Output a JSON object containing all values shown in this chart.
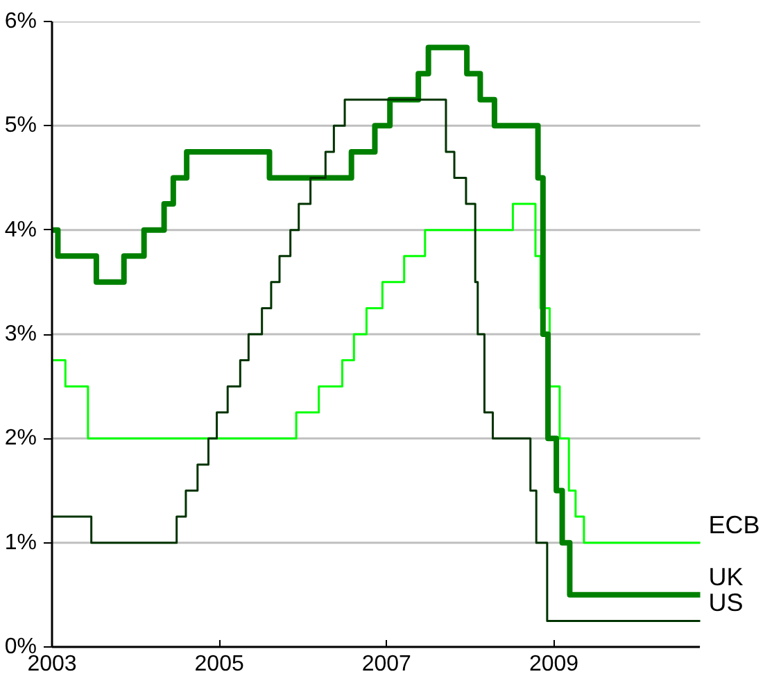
{
  "chart_data": {
    "type": "step",
    "xlim": [
      2003,
      2010.75
    ],
    "ylim": [
      0,
      6
    ],
    "xticks": [
      2003,
      2005,
      2007,
      2009
    ],
    "yticks": [
      {
        "value": 0,
        "label": "0%"
      },
      {
        "value": 1,
        "label": "1%"
      },
      {
        "value": 2,
        "label": "2%"
      },
      {
        "value": 3,
        "label": "3%"
      },
      {
        "value": 4,
        "label": "4%"
      },
      {
        "value": 5,
        "label": "5%"
      },
      {
        "value": 6,
        "label": "6%"
      }
    ],
    "grid": "y",
    "series": [
      {
        "name": "ECB",
        "color": "#00ff00",
        "x": [
          2003,
          2003.16,
          2003.43,
          2005.92,
          2006.19,
          2006.47,
          2006.61,
          2006.76,
          2006.95,
          2007.21,
          2007.46,
          2008.51,
          2008.78,
          2008.84,
          2008.95,
          2009.07,
          2009.18,
          2009.26,
          2009.36,
          2010.75
        ],
        "values": [
          2.75,
          2.5,
          2.0,
          2.25,
          2.5,
          2.75,
          3.0,
          3.25,
          3.5,
          3.75,
          4.0,
          4.25,
          3.75,
          3.25,
          2.5,
          2.0,
          1.5,
          1.25,
          1.0,
          1.0
        ]
      },
      {
        "name": "UK",
        "color": "#008000",
        "x": [
          2003,
          2003.07,
          2003.53,
          2003.86,
          2004.1,
          2004.34,
          2004.45,
          2004.61,
          2005.6,
          2006.58,
          2006.86,
          2007.04,
          2007.38,
          2007.5,
          2007.96,
          2008.12,
          2008.29,
          2008.81,
          2008.87,
          2008.93,
          2009.03,
          2009.1,
          2009.19,
          2010.75
        ],
        "values": [
          4.0,
          3.75,
          3.5,
          3.75,
          4.0,
          4.25,
          4.5,
          4.75,
          4.5,
          4.75,
          5.0,
          5.25,
          5.5,
          5.75,
          5.5,
          5.25,
          5.0,
          4.5,
          3.0,
          2.0,
          1.5,
          1.0,
          0.5,
          0.5
        ]
      },
      {
        "name": "US",
        "color": "#003300",
        "x": [
          2003,
          2003.47,
          2004.49,
          2004.6,
          2004.74,
          2004.87,
          2004.97,
          2005.1,
          2005.25,
          2005.35,
          2005.51,
          2005.62,
          2005.72,
          2005.85,
          2005.95,
          2006.09,
          2006.27,
          2006.37,
          2006.5,
          2007.71,
          2007.81,
          2007.95,
          2008.06,
          2008.09,
          2008.17,
          2008.27,
          2008.72,
          2008.79,
          2008.92,
          2010.75
        ],
        "values": [
          1.25,
          1.0,
          1.25,
          1.5,
          1.75,
          2.0,
          2.25,
          2.5,
          2.75,
          3.0,
          3.25,
          3.5,
          3.75,
          4.0,
          4.25,
          4.5,
          4.75,
          5.0,
          5.25,
          4.75,
          4.5,
          4.25,
          3.5,
          3.0,
          2.25,
          2.0,
          1.5,
          1.0,
          0.25,
          0.25
        ]
      }
    ]
  }
}
